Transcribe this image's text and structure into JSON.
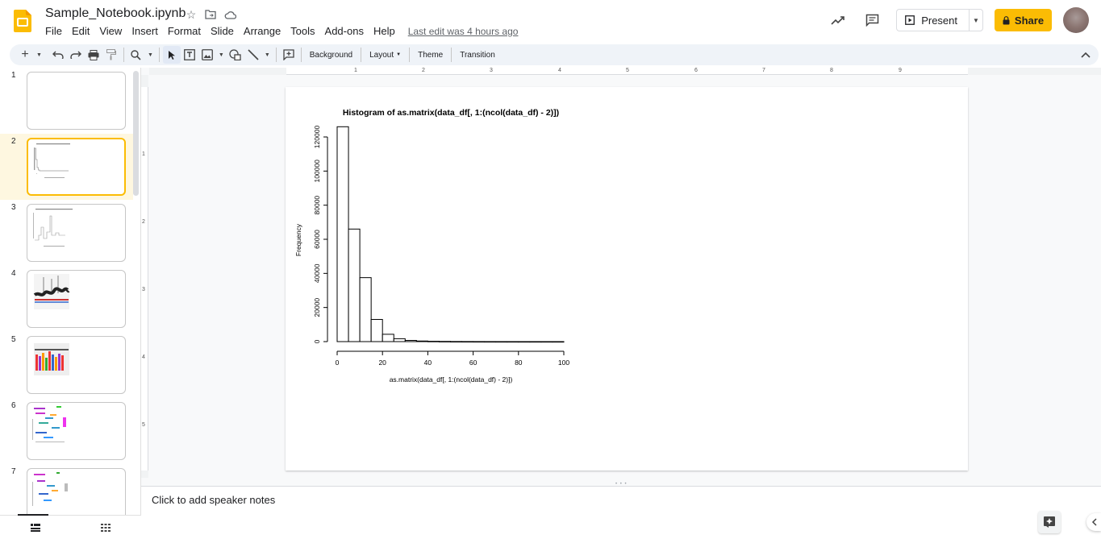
{
  "app": {
    "title": "Sample_Notebook.ipynb",
    "menu": [
      "File",
      "Edit",
      "View",
      "Insert",
      "Format",
      "Slide",
      "Arrange",
      "Tools",
      "Add-ons",
      "Help"
    ],
    "last_edit": "Last edit was 4 hours ago",
    "brand_color": "#fbbc04"
  },
  "header": {
    "present_label": "Present",
    "share_label": "Share"
  },
  "toolbar": {
    "background_label": "Background",
    "layout_label": "Layout",
    "theme_label": "Theme",
    "transition_label": "Transition"
  },
  "ruler": {
    "h_marks": [
      "1",
      "2",
      "3",
      "4",
      "5",
      "6",
      "7",
      "8",
      "9"
    ],
    "v_marks": [
      "1",
      "2",
      "3",
      "4",
      "5"
    ]
  },
  "filmstrip": {
    "slides": [
      {
        "num": "1",
        "kind": "blank"
      },
      {
        "num": "2",
        "kind": "histogram",
        "selected": true
      },
      {
        "num": "3",
        "kind": "histogram2"
      },
      {
        "num": "4",
        "kind": "boxplot-dark"
      },
      {
        "num": "5",
        "kind": "boxplot-color"
      },
      {
        "num": "6",
        "kind": "scatter-labels"
      },
      {
        "num": "7",
        "kind": "scatter-labels"
      }
    ]
  },
  "notes": {
    "placeholder": "Click to add speaker notes"
  },
  "chart_data": {
    "type": "bar",
    "title": "Histogram of as.matrix(data_df[, 1:(ncol(data_df) - 2)])",
    "xlabel": "as.matrix(data_df[, 1:(ncol(data_df) - 2)])",
    "ylabel": "Frequency",
    "bin_width": 5,
    "x_range": [
      0,
      100
    ],
    "ylim": [
      0,
      120000
    ],
    "x_ticks": [
      0,
      20,
      40,
      60,
      80,
      100
    ],
    "y_ticks": [
      0,
      20000,
      40000,
      60000,
      80000,
      100000,
      120000
    ],
    "bins": [
      {
        "start": 0,
        "end": 5,
        "count": 126000
      },
      {
        "start": 5,
        "end": 10,
        "count": 66000
      },
      {
        "start": 10,
        "end": 15,
        "count": 37500
      },
      {
        "start": 15,
        "end": 20,
        "count": 13000
      },
      {
        "start": 20,
        "end": 25,
        "count": 4300
      },
      {
        "start": 25,
        "end": 30,
        "count": 1700
      },
      {
        "start": 30,
        "end": 35,
        "count": 700
      },
      {
        "start": 35,
        "end": 40,
        "count": 350
      },
      {
        "start": 40,
        "end": 45,
        "count": 200
      },
      {
        "start": 45,
        "end": 50,
        "count": 120
      },
      {
        "start": 50,
        "end": 55,
        "count": 60
      },
      {
        "start": 55,
        "end": 60,
        "count": 40
      },
      {
        "start": 60,
        "end": 65,
        "count": 25
      },
      {
        "start": 65,
        "end": 70,
        "count": 15
      },
      {
        "start": 70,
        "end": 75,
        "count": 10
      },
      {
        "start": 75,
        "end": 80,
        "count": 8
      },
      {
        "start": 80,
        "end": 85,
        "count": 5
      },
      {
        "start": 85,
        "end": 90,
        "count": 4
      },
      {
        "start": 90,
        "end": 95,
        "count": 3
      },
      {
        "start": 95,
        "end": 100,
        "count": 2
      }
    ],
    "grid": false,
    "legend": "none"
  }
}
